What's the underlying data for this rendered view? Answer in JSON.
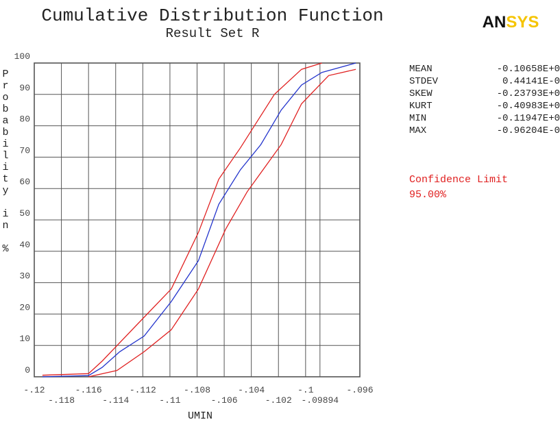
{
  "chart_data": {
    "type": "line",
    "title": "Cumulative Distribution Function",
    "subtitle": "Result Set R",
    "logo": "ANSYS",
    "ylabel": "Probability in %",
    "xlabel": "UMIN",
    "xlim": [
      -0.12,
      -0.096
    ],
    "xticks": [
      {
        "value": -0.12,
        "label": "-.12"
      },
      {
        "value": -0.118,
        "label": "-.118"
      },
      {
        "value": -0.116,
        "label": "-.116"
      },
      {
        "value": -0.114,
        "label": "-.114"
      },
      {
        "value": -0.112,
        "label": "-.112"
      },
      {
        "value": -0.11,
        "label": "-.11"
      },
      {
        "value": -0.108,
        "label": "-.108"
      },
      {
        "value": -0.106,
        "label": "-.106"
      },
      {
        "value": -0.104,
        "label": "-.104"
      },
      {
        "value": -0.102,
        "label": "-.102"
      },
      {
        "value": -0.1,
        "label": "-.1"
      },
      {
        "value": -0.09894,
        "label": "-.09894"
      },
      {
        "value": -0.096,
        "label": "-.096"
      }
    ],
    "ylim": [
      0,
      100
    ],
    "yticks": [
      0,
      10,
      20,
      30,
      40,
      50,
      60,
      70,
      80,
      90,
      100
    ],
    "grid": true,
    "series": [
      {
        "color": "#2233cc",
        "x": [
          -0.1194,
          -0.116,
          -0.115,
          -0.1137,
          -0.1119,
          -0.1099,
          -0.1079,
          -0.1064,
          -0.1048,
          -0.1033,
          -0.1018,
          -0.1003,
          -0.0988,
          -0.0963
        ],
        "values": [
          0,
          0.4,
          3,
          8,
          13,
          24,
          37,
          55,
          66,
          74,
          85,
          93,
          97,
          100
        ]
      },
      {
        "color": "#e02020",
        "x": [
          -0.1194,
          -0.116,
          -0.115,
          -0.1119,
          -0.1099,
          -0.1079,
          -0.1064,
          -0.1048,
          -0.1023,
          -0.1003,
          -0.0988
        ],
        "values": [
          0.5,
          1,
          5,
          19,
          28,
          46,
          63,
          73,
          90,
          98,
          100
        ]
      },
      {
        "color": "#e02020",
        "x": [
          -0.116,
          -0.1139,
          -0.1119,
          -0.1099,
          -0.1079,
          -0.1059,
          -0.1043,
          -0.1018,
          -0.1003,
          -0.0983,
          -0.0963
        ],
        "values": [
          0,
          2,
          8,
          15,
          28,
          47,
          59,
          74,
          87,
          96,
          98
        ]
      }
    ],
    "stats": [
      {
        "label": "MEAN",
        "value": "-0.10658E+0"
      },
      {
        "label": "STDEV",
        "value": "0.44141E-0"
      },
      {
        "label": "SKEW",
        "value": "-0.23793E+0"
      },
      {
        "label": "KURT",
        "value": "-0.40983E+0"
      },
      {
        "label": "MIN",
        "value": "-0.11947E+0"
      },
      {
        "label": "MAX",
        "value": "-0.96204E-0"
      }
    ],
    "confidence_label": "Confidence Limit",
    "confidence_value": "95.00%"
  }
}
